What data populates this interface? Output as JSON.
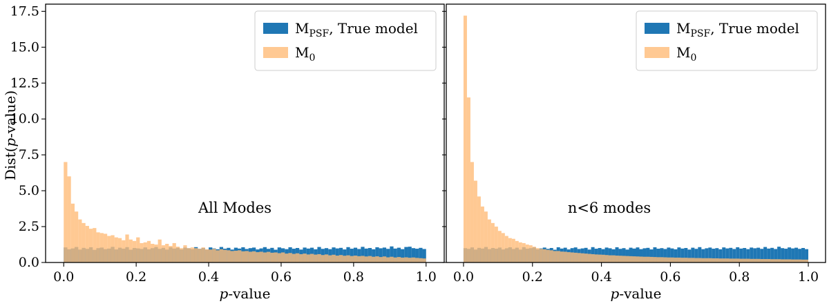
{
  "chart_data": {
    "type": "histogram",
    "sharey": true,
    "ylabel": "Dist(p-value)",
    "ylim": [
      0,
      18
    ],
    "yticks": [
      "0.0",
      "2.5",
      "5.0",
      "7.5",
      "10.0",
      "12.5",
      "15.0",
      "17.5"
    ],
    "ytick_values": [
      0,
      2.5,
      5,
      7.5,
      10,
      12.5,
      15,
      17.5
    ],
    "xlim": [
      -0.05,
      1.05
    ],
    "xticks": [
      "0.0",
      "0.2",
      "0.4",
      "0.6",
      "0.8",
      "1.0"
    ],
    "xtick_values": [
      0,
      0.2,
      0.4,
      0.6,
      0.8,
      1.0
    ],
    "xlabel": "p-value",
    "bin_width": 0.01,
    "bin_start": 0.0,
    "colors": {
      "true_model": "#1f77b4",
      "m0": "#ffbb78",
      "m0_alpha": 0.8
    },
    "legend": [
      "M_PSF, True model",
      "M_0"
    ],
    "panels": [
      {
        "annotation": "All Modes",
        "legend_position": "top-right",
        "series": [
          {
            "name": "M_PSF, True model",
            "values": [
              1.05,
              0.92,
              0.98,
              1.08,
              0.9,
              1.02,
              0.95,
              1.06,
              0.88,
              1.0,
              1.04,
              0.93,
              0.97,
              1.09,
              0.91,
              1.03,
              0.96,
              1.07,
              0.89,
              1.01,
              0.98,
              0.94,
              1.05,
              0.92,
              1.0,
              1.08,
              0.95,
              1.02,
              0.9,
              1.06,
              0.97,
              1.03,
              0.91,
              1.04,
              0.99,
              0.93,
              1.07,
              0.95,
              1.01,
              0.89,
              1.05,
              0.98,
              0.92,
              1.08,
              0.96,
              1.02,
              0.9,
              1.03,
              0.97,
              1.06,
              0.94,
              1.0,
              1.04,
              0.91,
              0.98,
              1.07,
              0.95,
              1.02,
              0.89,
              1.05,
              0.99,
              0.93,
              1.06,
              0.96,
              1.01,
              0.9,
              1.04,
              0.97,
              1.03,
              0.92,
              1.08,
              0.95,
              1.0,
              0.93,
              1.05,
              0.98,
              1.02,
              0.91,
              1.07,
              0.96,
              1.03,
              0.94,
              1.09,
              0.97,
              1.01,
              0.92,
              1.06,
              0.99,
              1.04,
              0.95,
              1.12,
              0.97,
              1.03,
              0.93,
              1.08,
              1.1,
              1.0,
              0.96,
              1.02,
              0.94
            ]
          },
          {
            "name": "M_0",
            "values": [
              7.0,
              6.0,
              4.1,
              3.55,
              3.0,
              2.75,
              2.55,
              2.35,
              2.4,
              2.1,
              2.05,
              2.0,
              1.85,
              1.9,
              1.75,
              1.7,
              1.55,
              1.95,
              1.6,
              1.5,
              1.75,
              1.35,
              1.4,
              1.5,
              1.3,
              1.25,
              1.6,
              1.2,
              1.3,
              1.15,
              1.35,
              1.1,
              1.0,
              1.2,
              1.0,
              1.05,
              1.0,
              0.95,
              1.05,
              0.92,
              0.9,
              0.95,
              0.85,
              0.92,
              0.88,
              0.85,
              0.8,
              0.82,
              0.85,
              0.78,
              0.8,
              0.75,
              0.78,
              0.72,
              0.75,
              0.7,
              0.74,
              0.68,
              0.7,
              0.65,
              0.7,
              0.62,
              0.66,
              0.6,
              0.64,
              0.58,
              0.62,
              0.56,
              0.6,
              0.55,
              0.58,
              0.52,
              0.56,
              0.5,
              0.54,
              0.48,
              0.52,
              0.47,
              0.5,
              0.45,
              0.48,
              0.44,
              0.46,
              0.42,
              0.45,
              0.4,
              0.43,
              0.38,
              0.42,
              0.36,
              0.4,
              0.35,
              0.38,
              0.34,
              0.36,
              0.33,
              0.35,
              0.32,
              0.3,
              0.28
            ]
          }
        ]
      },
      {
        "annotation": "n<6 modes",
        "legend_position": "top-right",
        "series": [
          {
            "name": "M_PSF, True model",
            "values": [
              1.0,
              0.95,
              1.05,
              0.9,
              1.02,
              0.97,
              1.08,
              0.93,
              1.01,
              0.96,
              1.04,
              0.91,
              0.99,
              1.06,
              0.94,
              1.03,
              0.9,
              1.07,
              0.96,
              1.0,
              1.05,
              0.92,
              0.98,
              1.04,
              0.95,
              1.01,
              0.89,
              1.06,
              0.97,
              1.03,
              0.91,
              1.0,
              1.05,
              0.94,
              0.98,
              1.02,
              0.9,
              1.07,
              0.96,
              1.01,
              0.93,
              1.04,
              0.99,
              0.92,
              1.06,
              0.95,
              1.0,
              0.9,
              1.03,
              0.97,
              1.05,
              0.93,
              0.99,
              1.02,
              0.91,
              1.06,
              0.96,
              1.0,
              0.94,
              1.04,
              0.98,
              0.92,
              1.05,
              0.97,
              1.01,
              0.9,
              1.03,
              0.95,
              1.07,
              0.93,
              0.99,
              1.04,
              0.96,
              1.0,
              0.92,
              1.05,
              0.98,
              1.02,
              0.94,
              1.06,
              0.97,
              1.01,
              0.93,
              1.04,
              0.99,
              1.03,
              0.95,
              1.08,
              0.97,
              1.02,
              0.94,
              1.1,
              1.0,
              0.96,
              1.05,
              0.98,
              1.03,
              0.95,
              1.01,
              0.93
            ]
          },
          {
            "name": "M_0",
            "values": [
              17.2,
              11.5,
              7.0,
              5.7,
              4.6,
              3.9,
              3.55,
              3.0,
              2.75,
              2.5,
              2.2,
              2.05,
              1.85,
              1.7,
              1.65,
              1.5,
              1.4,
              1.35,
              1.25,
              1.2,
              1.1,
              1.0,
              0.95,
              0.92,
              0.88,
              0.85,
              0.8,
              0.8,
              0.76,
              0.75,
              0.72,
              0.7,
              0.68,
              0.66,
              0.64,
              0.62,
              0.6,
              0.58,
              0.56,
              0.55,
              0.54,
              0.52,
              0.5,
              0.5,
              0.48,
              0.47,
              0.46,
              0.45,
              0.44,
              0.43,
              0.42,
              0.41,
              0.4,
              0.4,
              0.39,
              0.38,
              0.37,
              0.37,
              0.36,
              0.35,
              0.35,
              0.34,
              0.34,
              0.33,
              0.33,
              0.32,
              0.32,
              0.31,
              0.31,
              0.3,
              0.3,
              0.3,
              0.29,
              0.29,
              0.28,
              0.28,
              0.28,
              0.27,
              0.27,
              0.27,
              0.26,
              0.26,
              0.26,
              0.25,
              0.25,
              0.25,
              0.24,
              0.24,
              0.24,
              0.23,
              0.23,
              0.23,
              0.22,
              0.22,
              0.22,
              0.21,
              0.21,
              0.21,
              0.2,
              0.2
            ]
          }
        ]
      }
    ]
  }
}
